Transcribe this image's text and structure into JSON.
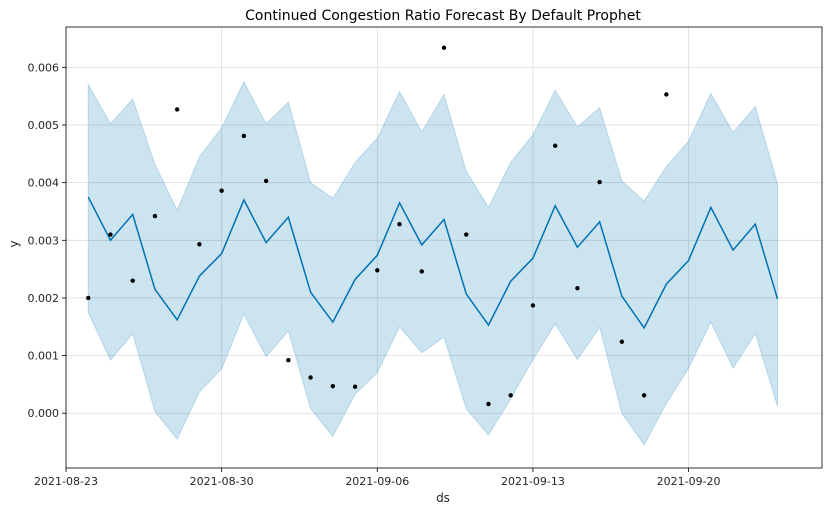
{
  "chart_data": {
    "type": "line",
    "title": "Continued Congestion Ratio Forecast By Default Prophet",
    "xlabel": "ds",
    "ylabel": "y",
    "grid": true,
    "x_start": "2021-08-24",
    "xlim_days": [
      -1,
      33
    ],
    "ylim": [
      -0.00095,
      0.0067
    ],
    "x_ticks": [
      {
        "day": -1,
        "label": "2021-08-23"
      },
      {
        "day": 6,
        "label": "2021-08-30"
      },
      {
        "day": 13,
        "label": "2021-09-06"
      },
      {
        "day": 20,
        "label": "2021-09-13"
      },
      {
        "day": 27,
        "label": "2021-09-20"
      }
    ],
    "y_ticks": [
      {
        "value": 0.0,
        "label": "0.000"
      },
      {
        "value": 0.001,
        "label": "0.001"
      },
      {
        "value": 0.002,
        "label": "0.002"
      },
      {
        "value": 0.003,
        "label": "0.003"
      },
      {
        "value": 0.004,
        "label": "0.004"
      },
      {
        "value": 0.005,
        "label": "0.005"
      },
      {
        "value": 0.006,
        "label": "0.006"
      }
    ],
    "series": [
      {
        "name": "yhat",
        "kind": "line",
        "color": "#0072B2",
        "days": [
          0,
          1,
          2,
          3,
          4,
          5,
          6,
          7,
          8,
          9,
          10,
          11,
          12,
          13,
          14,
          15,
          16,
          17,
          18,
          19,
          20,
          21,
          22,
          23,
          24,
          25,
          26,
          27,
          28,
          29,
          30,
          31
        ],
        "values": [
          0.00375,
          0.003,
          0.00345,
          0.00215,
          0.00162,
          0.00238,
          0.00277,
          0.0037,
          0.00296,
          0.0034,
          0.0021,
          0.00158,
          0.00232,
          0.00274,
          0.00365,
          0.00292,
          0.00336,
          0.00207,
          0.00153,
          0.00229,
          0.00269,
          0.0036,
          0.00288,
          0.00332,
          0.00203,
          0.00148,
          0.00224,
          0.00265,
          0.00357,
          0.00283,
          0.00328,
          0.00198
        ]
      },
      {
        "name": "yhat_upper",
        "kind": "band-upper",
        "color": "#0072B2",
        "values": [
          0.0057,
          0.00502,
          0.00545,
          0.00432,
          0.00352,
          0.00445,
          0.00495,
          0.00575,
          0.00502,
          0.0054,
          0.004,
          0.00373,
          0.00435,
          0.00477,
          0.00558,
          0.00488,
          0.00553,
          0.0042,
          0.00357,
          0.00435,
          0.00483,
          0.0056,
          0.00497,
          0.0053,
          0.00403,
          0.00368,
          0.00428,
          0.00472,
          0.00555,
          0.00487,
          0.00532,
          0.00398
        ]
      },
      {
        "name": "yhat_lower",
        "kind": "band-lower",
        "color": "#0072B2",
        "values": [
          0.00175,
          0.00092,
          0.00138,
          3e-05,
          -0.00045,
          0.00037,
          0.00077,
          0.00172,
          0.00098,
          0.00143,
          8e-05,
          -0.0004,
          0.00033,
          0.0007,
          0.0015,
          0.00105,
          0.00132,
          8e-05,
          -0.00038,
          0.00025,
          0.00093,
          0.00155,
          0.00093,
          0.00149,
          0.0,
          -0.00055,
          0.00017,
          0.00078,
          0.00158,
          0.00078,
          0.00138,
          0.00012
        ]
      },
      {
        "name": "y (observed)",
        "kind": "scatter",
        "color": "#000000",
        "days": [
          0,
          1,
          2,
          3,
          4,
          5,
          6,
          7,
          8,
          9,
          10,
          11,
          12,
          13,
          14,
          15,
          16,
          17,
          18,
          19,
          20,
          21,
          22,
          23,
          24,
          25,
          26
        ],
        "values": [
          0.002,
          0.0031,
          0.0023,
          0.00342,
          0.00527,
          0.00293,
          0.00386,
          0.00481,
          0.00403,
          0.00092,
          0.00062,
          0.00047,
          0.00046,
          0.00248,
          0.00328,
          0.00246,
          0.00634,
          0.0031,
          0.00016,
          0.00031,
          0.00187,
          0.00464,
          0.00217,
          0.00401,
          0.00124,
          0.00031,
          0.00553
        ]
      }
    ]
  }
}
